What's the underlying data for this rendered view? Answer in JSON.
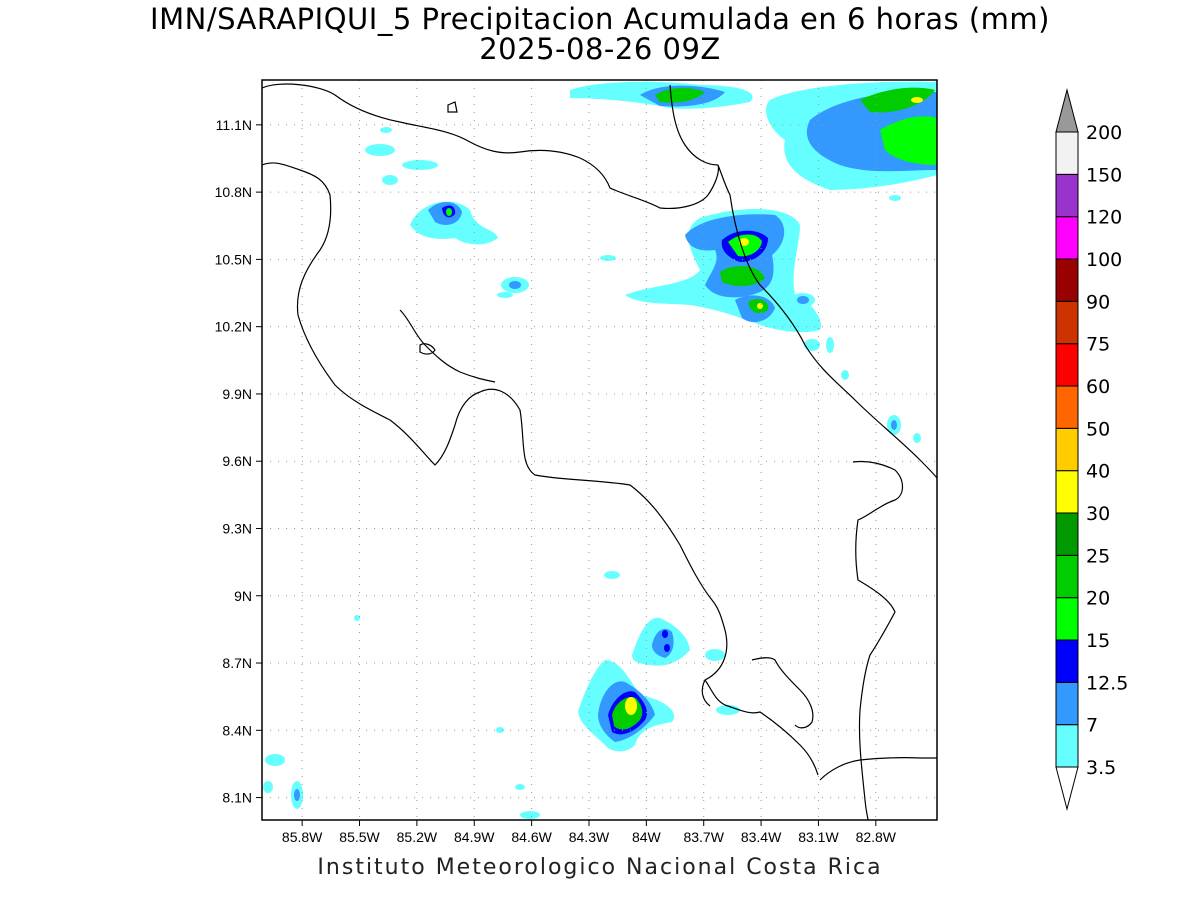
{
  "title_line1": "IMN/SARAPIQUI_5 Precipitacion Acumulada en 6 horas (mm)",
  "title_line2": "2025-08-26 09Z",
  "footer": "Instituto Meteorologico Nacional Costa Rica",
  "map": {
    "lon_range": [
      -86.01,
      -82.48
    ],
    "lat_range": [
      8.0,
      11.3
    ],
    "lon_ticks": [
      -85.8,
      -85.5,
      -85.2,
      -84.9,
      -84.6,
      -84.3,
      -84.0,
      -83.7,
      -83.4,
      -83.1,
      -82.8
    ],
    "lon_labels": [
      "85.8W",
      "85.5W",
      "85.2W",
      "84.9W",
      "84.6W",
      "84.3W",
      "84W",
      "83.7W",
      "83.4W",
      "83.1W",
      "82.8W"
    ],
    "lat_ticks": [
      8.1,
      8.4,
      8.7,
      9.0,
      9.3,
      9.6,
      9.9,
      10.2,
      10.5,
      10.8,
      11.1
    ],
    "lat_labels": [
      "8.1N",
      "8.4N",
      "8.7N",
      "9N",
      "9.3N",
      "9.6N",
      "9.9N",
      "10.2N",
      "10.5N",
      "10.8N",
      "11.1N"
    ],
    "grid": "dotted"
  },
  "colorbar": {
    "labels": [
      "3.5",
      "7",
      "12.5",
      "15",
      "20",
      "25",
      "30",
      "40",
      "50",
      "60",
      "75",
      "90",
      "100",
      "120",
      "150",
      "200"
    ],
    "colors": [
      "#66ffff",
      "#3399ff",
      "#0000ff",
      "#00ff00",
      "#00cc00",
      "#009900",
      "#ffff00",
      "#ffcc00",
      "#ff6600",
      "#ff0000",
      "#cc3300",
      "#990000",
      "#ff00ff",
      "#9933cc",
      "#f2f2f2",
      "#999999"
    ]
  }
}
